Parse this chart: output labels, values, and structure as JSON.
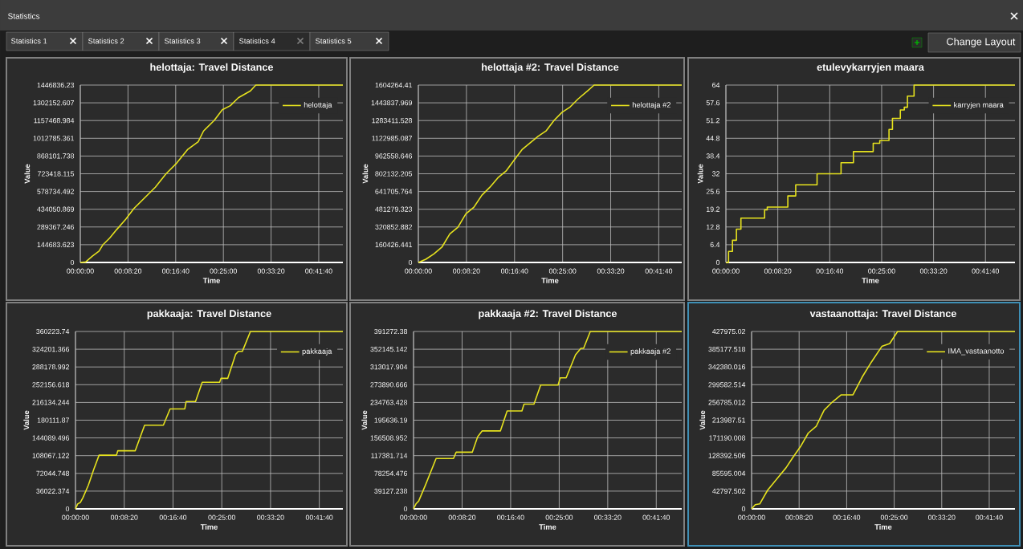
{
  "chart_data": [
    {
      "type": "line",
      "title": "helottaja: Travel Distance",
      "xlabel": "Time",
      "ylabel": "Value",
      "grid": true,
      "legend": "top right",
      "xlim": [
        0,
        0.7647
      ],
      "ylim": [
        0,
        1446836.23
      ],
      "xticks": [
        {
          "value": 0,
          "label": "00:00:00"
        },
        {
          "value": 0.1389,
          "label": "00:08:20"
        },
        {
          "value": 0.2778,
          "label": "00:16:40"
        },
        {
          "value": 0.4167,
          "label": "00:25:00"
        },
        {
          "value": 0.5556,
          "label": "00:33:20"
        },
        {
          "value": 0.6944,
          "label": "00:41:40"
        }
      ],
      "yticks": [
        0,
        144683.623,
        289367.246,
        434050.869,
        578734.492,
        723418.115,
        868101.738,
        1012785.361,
        1157468.984,
        1302152.607,
        1446836.23
      ],
      "series": [
        {
          "name": "helottaja",
          "color": "#e6e21e",
          "x": [
            0,
            0.0156,
            0.0351,
            0.0546,
            0.0663,
            0.0858,
            0.1053,
            0.1326,
            0.1561,
            0.1873,
            0.2185,
            0.2497,
            0.2809,
            0.3121,
            0.3433,
            0.3589,
            0.3901,
            0.4135,
            0.437,
            0.4604,
            0.4955,
            0.5111,
            0.7647
          ],
          "values": [
            0,
            4000,
            52000,
            92000,
            146000,
            200000,
            266000,
            353000,
            440000,
            527000,
            614000,
            723000,
            811000,
            920000,
            985000,
            1072000,
            1159000,
            1246000,
            1279000,
            1344000,
            1399000,
            1446836.23,
            1446836.23
          ]
        }
      ]
    },
    {
      "type": "line",
      "title": "helottaja #2: Travel Distance",
      "xlabel": "Time",
      "ylabel": "Value",
      "grid": true,
      "legend": "top right",
      "xlim": [
        0,
        0.7608
      ],
      "ylim": [
        0,
        1604264.41
      ],
      "xticks": [
        {
          "value": 0,
          "label": "00:00:00"
        },
        {
          "value": 0.1389,
          "label": "00:08:20"
        },
        {
          "value": 0.2778,
          "label": "00:16:40"
        },
        {
          "value": 0.4167,
          "label": "00:25:00"
        },
        {
          "value": 0.5556,
          "label": "00:33:20"
        },
        {
          "value": 0.6944,
          "label": "00:41:40"
        }
      ],
      "yticks": [
        0,
        160426.441,
        320852.882,
        481279.323,
        641705.764,
        802132.205,
        962558.646,
        1122985.087,
        1283411.528,
        1443837.969,
        1604264.41
      ],
      "series": [
        {
          "name": "helottaja #2",
          "color": "#e6e21e",
          "x": [
            0,
            0.0216,
            0.0448,
            0.0679,
            0.091,
            0.1142,
            0.1373,
            0.1605,
            0.1836,
            0.2068,
            0.2299,
            0.2531,
            0.2762,
            0.2994,
            0.3225,
            0.3457,
            0.3688,
            0.392,
            0.4151,
            0.4383,
            0.4614,
            0.4884,
            0.5077,
            0.7608
          ],
          "values": [
            0,
            29000,
            77000,
            138000,
            259000,
            319000,
            440000,
            500000,
            609000,
            681000,
            766000,
            826000,
            923000,
            1020000,
            1080000,
            1140000,
            1189000,
            1285000,
            1358000,
            1406000,
            1479000,
            1551000,
            1604264.41,
            1604264.41
          ]
        }
      ]
    },
    {
      "type": "step",
      "title": "etulevykarryjen maara",
      "xlabel": "Time",
      "ylabel": "Value",
      "grid": true,
      "legend": "top right",
      "xlim": [
        0,
        0.7734
      ],
      "ylim": [
        0,
        64
      ],
      "xticks": [
        {
          "value": 0,
          "label": "00:00:00"
        },
        {
          "value": 0.1389,
          "label": "00:08:20"
        },
        {
          "value": 0.2778,
          "label": "00:16:40"
        },
        {
          "value": 0.4167,
          "label": "00:25:00"
        },
        {
          "value": 0.5556,
          "label": "00:33:20"
        },
        {
          "value": 0.6944,
          "label": "00:41:40"
        }
      ],
      "yticks": [
        0,
        6.4,
        12.8,
        19.2,
        25.6,
        32,
        38.4,
        44.8,
        51.2,
        57.6,
        64
      ],
      "series": [
        {
          "name": "karryjen maara",
          "color": "#e6e21e",
          "x": [
            0,
            0.0071,
            0.0176,
            0.0282,
            0.0402,
            0.1036,
            0.1107,
            0.1657,
            0.1868,
            0.2439,
            0.3081,
            0.3412,
            0.3941,
            0.4117,
            0.4364,
            0.4456,
            0.4667,
            0.4773,
            0.4858,
            0.5034,
            0.7734
          ],
          "values": [
            0,
            4,
            8,
            12,
            16,
            19,
            20,
            24,
            28,
            32,
            36,
            40,
            43,
            44,
            48,
            52,
            55,
            56,
            60,
            64,
            64
          ]
        }
      ]
    },
    {
      "type": "line",
      "title": "pakkaaja: Travel Distance",
      "xlabel": "Time",
      "ylabel": "Value",
      "grid": true,
      "legend": "top right",
      "xlim": [
        0,
        0.7616
      ],
      "ylim": [
        0,
        360223.74
      ],
      "xticks": [
        {
          "value": 0,
          "label": "00:00:00"
        },
        {
          "value": 0.1389,
          "label": "00:08:20"
        },
        {
          "value": 0.2778,
          "label": "00:16:40"
        },
        {
          "value": 0.4167,
          "label": "00:25:00"
        },
        {
          "value": 0.5556,
          "label": "00:33:20"
        },
        {
          "value": 0.6944,
          "label": "00:41:40"
        }
      ],
      "yticks": [
        0,
        36022.374,
        72044.748,
        108067.122,
        144089.496,
        180111.87,
        216134.244,
        252156.618,
        288178.992,
        324201.366,
        360223.74
      ],
      "series": [
        {
          "name": "pakkaaja",
          "color": "#e6e21e",
          "x": [
            0,
            0.0061,
            0.0137,
            0.0214,
            0.0366,
            0.0519,
            0.0672,
            0.1168,
            0.1206,
            0.1702,
            0.1855,
            0.1969,
            0.2503,
            0.2694,
            0.3114,
            0.3152,
            0.3419,
            0.361,
            0.4106,
            0.4144,
            0.4335,
            0.4563,
            0.464,
            0.4754,
            0.4983,
            0.7616
          ],
          "values": [
            0,
            10000,
            13000,
            23000,
            48000,
            80000,
            109000,
            109000,
            118000,
            118000,
            148000,
            170000,
            170000,
            203000,
            203000,
            218000,
            218000,
            257000,
            257000,
            265000,
            265000,
            314000,
            320000,
            320000,
            360223.74,
            360223.74
          ]
        }
      ]
    },
    {
      "type": "line",
      "title": "pakkaaja #2: Travel Distance",
      "xlabel": "Time",
      "ylabel": "Value",
      "grid": true,
      "legend": "top right",
      "xlim": [
        0,
        0.7673
      ],
      "ylim": [
        0,
        391272.38
      ],
      "xticks": [
        {
          "value": 0,
          "label": "00:00:00"
        },
        {
          "value": 0.1389,
          "label": "00:08:20"
        },
        {
          "value": 0.2778,
          "label": "00:16:40"
        },
        {
          "value": 0.4167,
          "label": "00:25:00"
        },
        {
          "value": 0.5556,
          "label": "00:33:20"
        },
        {
          "value": 0.6944,
          "label": "00:41:40"
        }
      ],
      "yticks": [
        0,
        39127.238,
        78254.476,
        117381.714,
        156508.952,
        195636.19,
        234763.428,
        273890.666,
        313017.904,
        352145.142,
        391272.38
      ],
      "series": [
        {
          "name": "pakkaaja #2",
          "color": "#e6e21e",
          "x": [
            0,
            0.0069,
            0.0146,
            0.0338,
            0.0645,
            0.1143,
            0.122,
            0.168,
            0.1834,
            0.1964,
            0.2486,
            0.2678,
            0.31,
            0.3161,
            0.3445,
            0.3637,
            0.4136,
            0.4197,
            0.4366,
            0.4635,
            0.4788,
            0.4865,
            0.5057,
            0.7673
          ],
          "values": [
            0,
            11000,
            17000,
            52000,
            111000,
            111000,
            125000,
            125000,
            159000,
            172000,
            172000,
            216000,
            216000,
            231000,
            231000,
            273000,
            273000,
            289000,
            289000,
            340000,
            354000,
            354000,
            391272.38,
            391272.38
          ]
        }
      ]
    },
    {
      "type": "line",
      "title": "vastaanottaja: Travel Distance",
      "xlabel": "Time",
      "ylabel": "Value",
      "grid": true,
      "legend": "top right",
      "xlim": [
        0,
        0.7696
      ],
      "ylim": [
        0,
        427975.02
      ],
      "xticks": [
        {
          "value": 0,
          "label": "00:00:00"
        },
        {
          "value": 0.1389,
          "label": "00:08:20"
        },
        {
          "value": 0.2778,
          "label": "00:16:40"
        },
        {
          "value": 0.4167,
          "label": "00:25:00"
        },
        {
          "value": 0.5556,
          "label": "00:33:20"
        },
        {
          "value": 0.6944,
          "label": "00:41:40"
        }
      ],
      "yticks": [
        0,
        42797.502,
        85595.004,
        128392.506,
        171190.008,
        213987.51,
        256785.012,
        299582.514,
        342380.016,
        385177.518,
        427975.02
      ],
      "series": [
        {
          "name": "IMA_vastaanotto",
          "color": "#e6e21e",
          "x": [
            0,
            0.0107,
            0.0238,
            0.0468,
            0.0775,
            0.1005,
            0.1197,
            0.1427,
            0.1657,
            0.1888,
            0.2118,
            0.2348,
            0.2617,
            0.2962,
            0.3231,
            0.3499,
            0.3806,
            0.4036,
            0.4266,
            0.7696
          ],
          "values": [
            0,
            10000,
            12000,
            45000,
            76000,
            99000,
            123000,
            150000,
            183000,
            199000,
            238000,
            257000,
            275000,
            275000,
            318000,
            354000,
            392000,
            399000,
            427975.02,
            427975.02
          ]
        }
      ]
    },
    {
      "type": "other",
      "annotations": [
        "Statistics",
        "Statistics 1",
        "Statistics 2",
        "Statistics 3",
        "Statistics 4",
        "Statistics 5",
        "Change Layout"
      ]
    }
  ]
}
